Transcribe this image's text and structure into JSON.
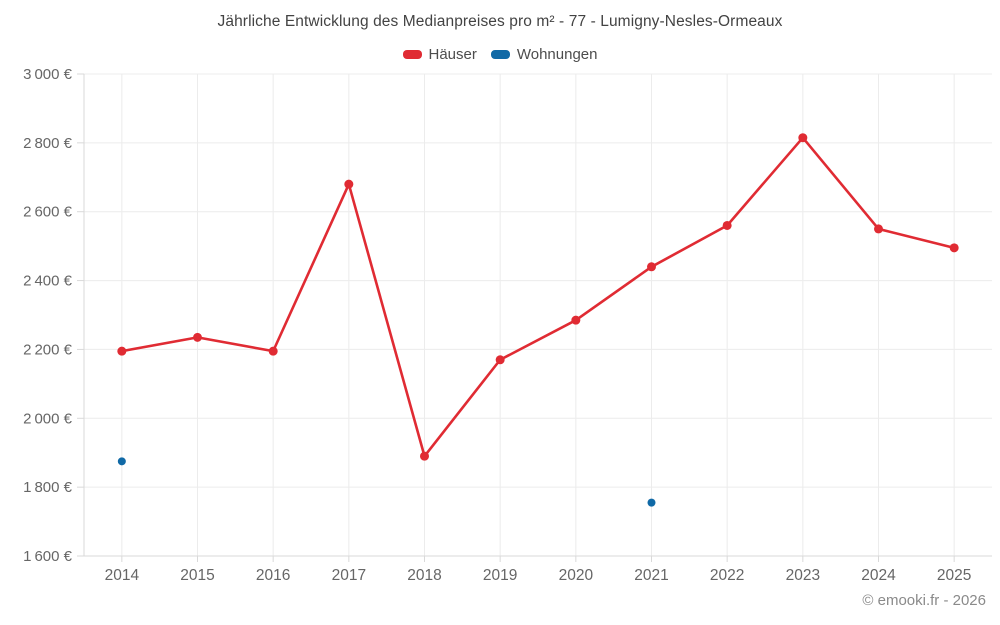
{
  "page": {
    "title": "Jährliche Entwicklung des Medianpreises pro m² - 77 - Lumigny-Nesles-Ormeaux",
    "footer": "© emooki.fr - 2026"
  },
  "legend": {
    "items": [
      {
        "label": "Häuser",
        "color": "#e02b33"
      },
      {
        "label": "Wohnungen",
        "color": "#1069a6"
      }
    ]
  },
  "chart_data": {
    "type": "line",
    "title": "Jährliche Entwicklung des Medianpreises pro m² - 77 - Lumigny-Nesles-Ormeaux",
    "categories": [
      "2014",
      "2015",
      "2016",
      "2017",
      "2018",
      "2019",
      "2020",
      "2021",
      "2022",
      "2023",
      "2024",
      "2025"
    ],
    "series": [
      {
        "name": "Häuser",
        "color": "#e02b33",
        "show_line": true,
        "marker_radius": 4.5,
        "values": [
          2195,
          2235,
          2195,
          2680,
          1890,
          2170,
          2285,
          2440,
          2560,
          2815,
          2550,
          2495
        ]
      },
      {
        "name": "Wohnungen",
        "color": "#1069a6",
        "show_line": false,
        "marker_radius": 4,
        "values": [
          1875,
          null,
          null,
          null,
          null,
          null,
          null,
          1755,
          null,
          null,
          null,
          null
        ]
      }
    ],
    "xlabel": "",
    "ylabel": "",
    "ylim": [
      1600,
      3000
    ],
    "ytick_step": 200,
    "ytick_suffix": " €",
    "grid": true,
    "legend_position": "top",
    "colors": {
      "grid_line": "#ececec",
      "axis_line": "#d9d9d9",
      "tick_label": "#666666"
    }
  }
}
